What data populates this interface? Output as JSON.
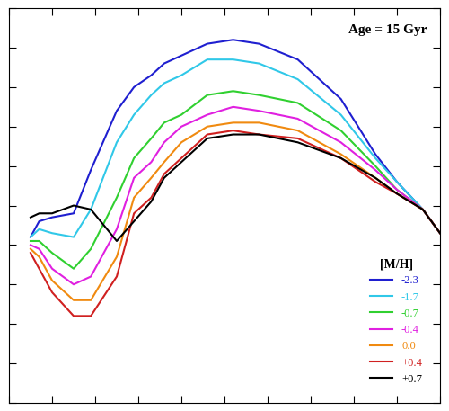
{
  "chart_data": {
    "type": "line",
    "annotation": "Age = 15 Gyr",
    "legend_title": "[M/H]",
    "x": [
      5,
      7,
      10,
      15,
      19,
      25,
      29,
      33,
      36,
      40,
      46,
      52,
      58,
      67,
      77,
      85,
      90,
      96,
      100
    ],
    "series": [
      {
        "name": "-2.3",
        "color": "#1f1fd0",
        "values": [
          42,
          46,
          47,
          48,
          59,
          74,
          80,
          83,
          86,
          88,
          91,
          92,
          91,
          87,
          77,
          63,
          56,
          49,
          43
        ]
      },
      {
        "name": "-1.7",
        "color": "#30c8e8",
        "values": [
          42,
          44,
          43,
          42,
          49,
          66,
          73,
          78,
          81,
          83,
          87,
          87,
          86,
          82,
          73,
          62,
          56,
          49,
          43
        ]
      },
      {
        "name": "-0.7",
        "color": "#30d030",
        "values": [
          41,
          41,
          38,
          34,
          39,
          52,
          62,
          67,
          71,
          73,
          78,
          79,
          78,
          76,
          69,
          60,
          54,
          49,
          43
        ]
      },
      {
        "name": "-0.4",
        "color": "#e020e0",
        "values": [
          40,
          39,
          34,
          30,
          32,
          44,
          57,
          61,
          66,
          70,
          73,
          75,
          74,
          72,
          66,
          59,
          54,
          49,
          43
        ]
      },
      {
        "name": "0.0",
        "color": "#f08a10",
        "values": [
          39,
          37,
          31,
          26,
          26,
          37,
          52,
          57,
          61,
          66,
          70,
          71,
          71,
          69,
          63,
          57,
          53,
          49,
          43
        ]
      },
      {
        "name": "+0.4",
        "color": "#d02020",
        "values": [
          38,
          34,
          28,
          22,
          22,
          32,
          48,
          52,
          58,
          62,
          68,
          69,
          68,
          67,
          62,
          56,
          53,
          49,
          43
        ]
      },
      {
        "name": "+0.7",
        "color": "#000000",
        "values": [
          47,
          48,
          48,
          50,
          49,
          41,
          46,
          51,
          57,
          61,
          67,
          68,
          68,
          66,
          62,
          57,
          53,
          49,
          43
        ]
      }
    ],
    "xlim": [
      0,
      100
    ],
    "ylim": [
      0,
      100
    ],
    "xticks": [
      0,
      10,
      20,
      30,
      40,
      50,
      60,
      70,
      80,
      90,
      100
    ],
    "yticks": [
      0,
      10,
      20,
      30,
      40,
      50,
      60,
      70,
      80,
      90,
      100
    ],
    "tick_labels": false,
    "legend": "lower right"
  }
}
